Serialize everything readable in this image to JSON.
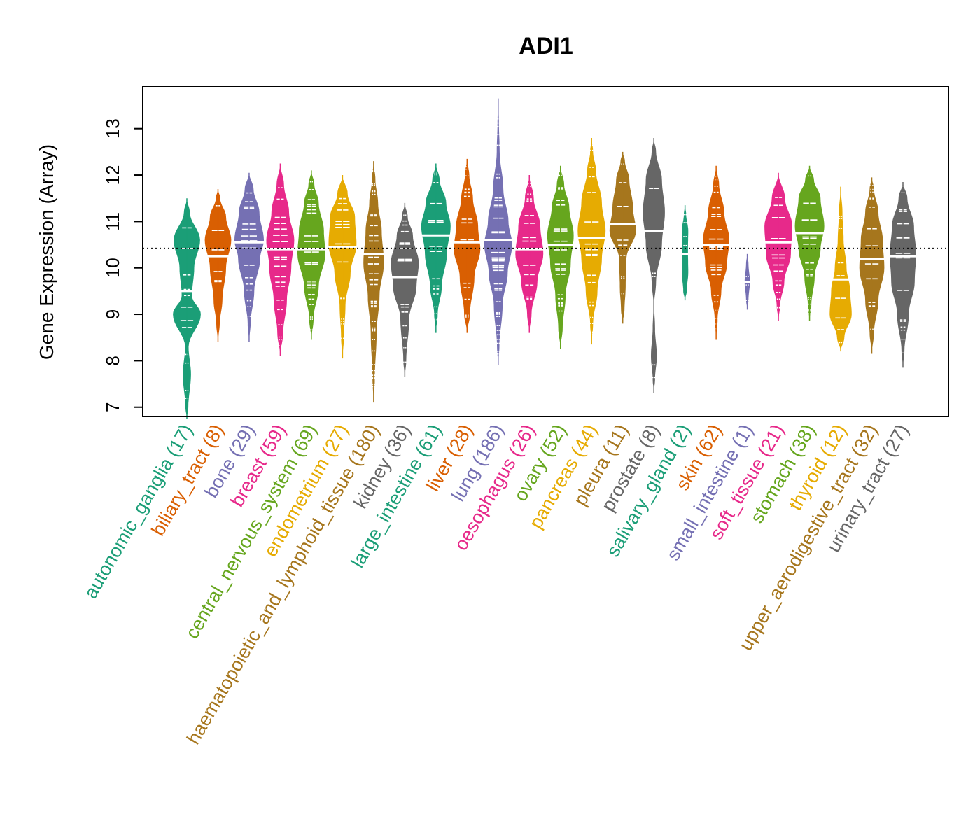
{
  "chart_data": {
    "type": "beanplot",
    "title": "ADI1",
    "ylabel": "Gene Expression (Array)",
    "xlabel": "",
    "ylim": [
      6.8,
      13.9
    ],
    "yticks": [
      7,
      8,
      9,
      10,
      11,
      12,
      13
    ],
    "reference_line": 10.42,
    "categories": [
      {
        "name": "autonomic_ganglia",
        "n": "17",
        "color": "#1b9e77",
        "min": 6.75,
        "max": 11.5,
        "mean": 9.5,
        "shape": [
          [
            7.0,
            0.1
          ],
          [
            7.7,
            0.28
          ],
          [
            8.3,
            0.12
          ],
          [
            9.0,
            0.95
          ],
          [
            9.4,
            0.35
          ],
          [
            10.0,
            0.5
          ],
          [
            10.6,
            0.9
          ],
          [
            11.2,
            0.2
          ]
        ]
      },
      {
        "name": "biliary_tract",
        "n": "8",
        "color": "#d95f02",
        "min": 8.4,
        "max": 11.7,
        "mean": 10.25,
        "shape": [
          [
            8.8,
            0.12
          ],
          [
            9.3,
            0.3
          ],
          [
            10.0,
            0.55
          ],
          [
            10.6,
            0.9
          ],
          [
            11.1,
            0.55
          ],
          [
            11.5,
            0.15
          ]
        ]
      },
      {
        "name": "bone",
        "n": "29",
        "color": "#7570b3",
        "min": 8.4,
        "max": 12.05,
        "mean": 10.55,
        "shape": [
          [
            8.8,
            0.1
          ],
          [
            9.5,
            0.35
          ],
          [
            10.2,
            0.75
          ],
          [
            10.6,
            1.0
          ],
          [
            11.2,
            0.7
          ],
          [
            11.7,
            0.3
          ]
        ]
      },
      {
        "name": "breast",
        "n": "59",
        "color": "#e7298a",
        "min": 8.1,
        "max": 12.25,
        "mean": 10.4,
        "shape": [
          [
            8.6,
            0.2
          ],
          [
            9.3,
            0.45
          ],
          [
            10.0,
            0.75
          ],
          [
            10.6,
            0.95
          ],
          [
            11.2,
            0.6
          ],
          [
            11.8,
            0.25
          ]
        ]
      },
      {
        "name": "central_nervous_system",
        "n": "69",
        "color": "#66a61e",
        "min": 8.45,
        "max": 12.1,
        "mean": 10.4,
        "shape": [
          [
            8.9,
            0.15
          ],
          [
            9.6,
            0.5
          ],
          [
            10.3,
            0.95
          ],
          [
            10.8,
            0.85
          ],
          [
            11.4,
            0.5
          ],
          [
            11.8,
            0.2
          ]
        ]
      },
      {
        "name": "endometrium",
        "n": "27",
        "color": "#e6ab02",
        "min": 8.05,
        "max": 12.0,
        "mean": 10.45,
        "shape": [
          [
            8.5,
            0.1
          ],
          [
            9.2,
            0.2
          ],
          [
            9.9,
            0.55
          ],
          [
            10.5,
            0.95
          ],
          [
            11.1,
            0.85
          ],
          [
            11.6,
            0.35
          ]
        ]
      },
      {
        "name": "haematopoietic_and_lymphoid_tissue",
        "n": "180",
        "color": "#a6761d",
        "min": 7.1,
        "max": 12.3,
        "mean": 10.3,
        "shape": [
          [
            7.6,
            0.08
          ],
          [
            8.6,
            0.2
          ],
          [
            9.4,
            0.4
          ],
          [
            10.1,
            0.7
          ],
          [
            10.8,
            0.55
          ],
          [
            11.4,
            0.3
          ],
          [
            11.9,
            0.12
          ]
        ]
      },
      {
        "name": "kidney",
        "n": "36",
        "color": "#666666",
        "min": 7.65,
        "max": 11.4,
        "mean": 9.8,
        "shape": [
          [
            8.0,
            0.1
          ],
          [
            8.9,
            0.3
          ],
          [
            9.6,
            0.8
          ],
          [
            10.1,
            0.95
          ],
          [
            10.7,
            0.55
          ],
          [
            11.1,
            0.2
          ]
        ]
      },
      {
        "name": "large_intestine",
        "n": "61",
        "color": "#1b9e77",
        "min": 8.6,
        "max": 12.25,
        "mean": 10.7,
        "shape": [
          [
            9.0,
            0.12
          ],
          [
            9.6,
            0.4
          ],
          [
            10.3,
            0.75
          ],
          [
            10.9,
            1.0
          ],
          [
            11.4,
            0.7
          ],
          [
            11.9,
            0.25
          ]
        ]
      },
      {
        "name": "liver",
        "n": "28",
        "color": "#d95f02",
        "min": 8.6,
        "max": 12.35,
        "mean": 10.55,
        "shape": [
          [
            9.0,
            0.2
          ],
          [
            9.8,
            0.5
          ],
          [
            10.4,
            0.9
          ],
          [
            10.9,
            0.75
          ],
          [
            11.5,
            0.4
          ],
          [
            12.0,
            0.15
          ]
        ]
      },
      {
        "name": "lung",
        "n": "186",
        "color": "#7570b3",
        "min": 7.9,
        "max": 13.65,
        "mean": 10.6,
        "shape": [
          [
            8.3,
            0.08
          ],
          [
            9.2,
            0.3
          ],
          [
            9.9,
            0.65
          ],
          [
            10.5,
            0.95
          ],
          [
            11.0,
            0.7
          ],
          [
            11.7,
            0.35
          ],
          [
            12.5,
            0.1
          ],
          [
            13.1,
            0.05
          ]
        ]
      },
      {
        "name": "oesophagus",
        "n": "26",
        "color": "#e7298a",
        "min": 8.6,
        "max": 12.0,
        "mean": 10.4,
        "shape": [
          [
            9.0,
            0.15
          ],
          [
            9.7,
            0.55
          ],
          [
            10.3,
            0.95
          ],
          [
            10.9,
            0.75
          ],
          [
            11.5,
            0.3
          ]
        ]
      },
      {
        "name": "ovary",
        "n": "52",
        "color": "#66a61e",
        "min": 8.25,
        "max": 12.2,
        "mean": 10.5,
        "shape": [
          [
            8.7,
            0.15
          ],
          [
            9.4,
            0.35
          ],
          [
            10.1,
            0.7
          ],
          [
            10.7,
            0.9
          ],
          [
            11.3,
            0.6
          ],
          [
            11.8,
            0.25
          ]
        ]
      },
      {
        "name": "pancreas",
        "n": "44",
        "color": "#e6ab02",
        "min": 8.35,
        "max": 12.8,
        "mean": 10.65,
        "shape": [
          [
            8.8,
            0.1
          ],
          [
            9.5,
            0.4
          ],
          [
            10.2,
            0.7
          ],
          [
            10.8,
            0.95
          ],
          [
            11.4,
            0.7
          ],
          [
            12.1,
            0.3
          ],
          [
            12.5,
            0.1
          ]
        ]
      },
      {
        "name": "pleura",
        "n": "11",
        "color": "#a6761d",
        "min": 8.8,
        "max": 12.5,
        "mean": 10.95,
        "shape": [
          [
            9.1,
            0.12
          ],
          [
            9.6,
            0.2
          ],
          [
            10.2,
            0.25
          ],
          [
            10.8,
            0.9
          ],
          [
            11.3,
            0.7
          ],
          [
            11.9,
            0.45
          ],
          [
            12.3,
            0.15
          ]
        ]
      },
      {
        "name": "prostate",
        "n": "8",
        "color": "#666666",
        "min": 7.3,
        "max": 12.8,
        "mean": 10.8,
        "shape": [
          [
            7.6,
            0.08
          ],
          [
            8.1,
            0.2
          ],
          [
            8.7,
            0.08
          ],
          [
            9.2,
            0.02
          ],
          [
            9.7,
            0.15
          ],
          [
            10.5,
            0.55
          ],
          [
            11.2,
            0.75
          ],
          [
            11.9,
            0.55
          ],
          [
            12.5,
            0.15
          ]
        ]
      },
      {
        "name": "salivary_gland",
        "n": "2",
        "color": "#1b9e77",
        "min": 9.3,
        "max": 11.35,
        "mean": 10.3,
        "shape": [
          [
            9.5,
            0.12
          ],
          [
            9.9,
            0.22
          ],
          [
            10.4,
            0.2
          ],
          [
            10.8,
            0.22
          ],
          [
            11.15,
            0.08
          ]
        ]
      },
      {
        "name": "skin",
        "n": "62",
        "color": "#d95f02",
        "min": 8.45,
        "max": 12.2,
        "mean": 10.5,
        "shape": [
          [
            8.9,
            0.1
          ],
          [
            9.5,
            0.35
          ],
          [
            10.1,
            0.75
          ],
          [
            10.6,
            0.9
          ],
          [
            11.2,
            0.55
          ],
          [
            11.8,
            0.2
          ]
        ]
      },
      {
        "name": "small_intestine",
        "n": "1",
        "color": "#7570b3",
        "min": 9.1,
        "max": 10.3,
        "mean": 9.7,
        "shape": [
          [
            9.3,
            0.08
          ],
          [
            9.7,
            0.18
          ],
          [
            10.1,
            0.08
          ]
        ]
      },
      {
        "name": "soft_tissue",
        "n": "21",
        "color": "#e7298a",
        "min": 8.85,
        "max": 12.05,
        "mean": 10.55,
        "shape": [
          [
            9.2,
            0.12
          ],
          [
            9.7,
            0.4
          ],
          [
            10.3,
            0.85
          ],
          [
            10.9,
            0.95
          ],
          [
            11.5,
            0.45
          ]
        ]
      },
      {
        "name": "stomach",
        "n": "38",
        "color": "#66a61e",
        "min": 8.85,
        "max": 12.2,
        "mean": 10.75,
        "shape": [
          [
            9.2,
            0.12
          ],
          [
            9.8,
            0.35
          ],
          [
            10.4,
            0.75
          ],
          [
            10.9,
            1.0
          ],
          [
            11.5,
            0.75
          ],
          [
            11.9,
            0.3
          ]
        ]
      },
      {
        "name": "thyroid",
        "n": "12",
        "color": "#e6ab02",
        "min": 8.2,
        "max": 11.75,
        "mean": 9.75,
        "shape": [
          [
            8.5,
            0.25
          ],
          [
            9.0,
            0.75
          ],
          [
            9.5,
            0.65
          ],
          [
            10.0,
            0.4
          ],
          [
            10.6,
            0.2
          ],
          [
            11.2,
            0.12
          ]
        ]
      },
      {
        "name": "upper_aerodigestive_tract",
        "n": "32",
        "color": "#a6761d",
        "min": 8.15,
        "max": 11.95,
        "mean": 10.2,
        "shape": [
          [
            8.6,
            0.15
          ],
          [
            9.3,
            0.45
          ],
          [
            10.0,
            0.85
          ],
          [
            10.6,
            0.75
          ],
          [
            11.2,
            0.45
          ],
          [
            11.7,
            0.15
          ]
        ]
      },
      {
        "name": "urinary_tract",
        "n": "27",
        "color": "#666666",
        "min": 7.85,
        "max": 11.85,
        "mean": 10.25,
        "shape": [
          [
            8.2,
            0.1
          ],
          [
            9.0,
            0.4
          ],
          [
            9.7,
            0.8
          ],
          [
            10.3,
            0.9
          ],
          [
            10.9,
            0.75
          ],
          [
            11.5,
            0.3
          ]
        ]
      }
    ]
  }
}
